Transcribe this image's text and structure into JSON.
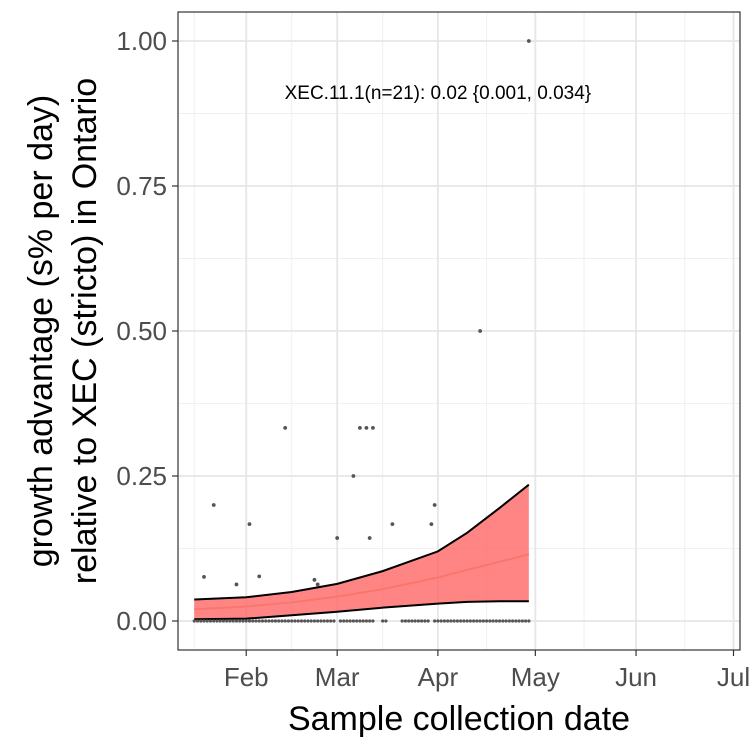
{
  "chart_data": {
    "type": "scatter",
    "title": "",
    "xlabel": "Sample collection date",
    "ylabel": "growth advantage (s% per day)\nrelative to XEC (stricto) in Ontario",
    "ylabel_lines": [
      "growth advantage (s% per day)",
      "relative to XEC (stricto) in Ontario"
    ],
    "x_range": [
      "2025-01-11",
      "2025-07-03"
    ],
    "ylim": [
      -0.05,
      1.05
    ],
    "grid": true,
    "x_ticks": [
      {
        "date": "2025-02-01",
        "label": "Feb"
      },
      {
        "date": "2025-03-01",
        "label": "Mar"
      },
      {
        "date": "2025-04-01",
        "label": "Apr"
      },
      {
        "date": "2025-05-01",
        "label": "May"
      },
      {
        "date": "2025-06-01",
        "label": "Jun"
      },
      {
        "date": "2025-07-01",
        "label": "Jul"
      }
    ],
    "x_minor_ticks": [
      "2025-01-16",
      "2025-02-15",
      "2025-03-15",
      "2025-04-16",
      "2025-05-16",
      "2025-06-16"
    ],
    "y_ticks": [
      {
        "value": 0,
        "label": "0.00"
      },
      {
        "value": 0.25,
        "label": "0.25"
      },
      {
        "value": 0.5,
        "label": "0.50"
      },
      {
        "value": 0.75,
        "label": "0.75"
      },
      {
        "value": 1,
        "label": "1.00"
      }
    ],
    "y_minor_ticks": [
      0.125,
      0.375,
      0.625,
      0.875
    ],
    "annotation": {
      "text": "XEC.11.1(n=21): 0.02 {0.001, 0.034}",
      "date": "2025-04-01",
      "y": 0.91
    },
    "fit": {
      "name": "XEC.11.1",
      "color": "#F8766D",
      "line_color": "#F8766D",
      "band_color": "#FF6666",
      "x": [
        "2025-01-16",
        "2025-02-01",
        "2025-02-15",
        "2025-03-01",
        "2025-03-15",
        "2025-04-01",
        "2025-04-10",
        "2025-04-20",
        "2025-04-29"
      ],
      "y": [
        0.02,
        0.025,
        0.032,
        0.042,
        0.055,
        0.075,
        0.088,
        0.102,
        0.115
      ],
      "lower": [
        0.003,
        0.004,
        0.01,
        0.016,
        0.023,
        0.03,
        0.033,
        0.034,
        0.034
      ],
      "upper": [
        0.037,
        0.041,
        0.05,
        0.064,
        0.086,
        0.12,
        0.152,
        0.195,
        0.235
      ]
    },
    "points": [
      {
        "x": "2025-01-19",
        "y": 0.076
      },
      {
        "x": "2025-01-22",
        "y": 0.2
      },
      {
        "x": "2025-01-29",
        "y": 0.063
      },
      {
        "x": "2025-02-02",
        "y": 0.167
      },
      {
        "x": "2025-02-05",
        "y": 0.077
      },
      {
        "x": "2025-02-13",
        "y": 0.333
      },
      {
        "x": "2025-02-22",
        "y": 0.071
      },
      {
        "x": "2025-02-23",
        "y": 0.063
      },
      {
        "x": "2025-03-01",
        "y": 0.143
      },
      {
        "x": "2025-03-06",
        "y": 0.25
      },
      {
        "x": "2025-03-08",
        "y": 0.333
      },
      {
        "x": "2025-03-10",
        "y": 0.333
      },
      {
        "x": "2025-03-12",
        "y": 0.333
      },
      {
        "x": "2025-03-11",
        "y": 0.143
      },
      {
        "x": "2025-03-18",
        "y": 0.167
      },
      {
        "x": "2025-03-30",
        "y": 0.167
      },
      {
        "x": "2025-03-31",
        "y": 0.2
      },
      {
        "x": "2025-04-14",
        "y": 0.5
      },
      {
        "x": "2025-04-29",
        "y": 1.0
      }
    ],
    "zero_point_ranges": [
      [
        "2025-01-16",
        "2025-02-28"
      ],
      [
        "2025-03-02",
        "2025-03-12"
      ],
      [
        "2025-03-15",
        "2025-03-16"
      ],
      [
        "2025-03-21",
        "2025-03-29"
      ],
      [
        "2025-03-31",
        "2025-04-29"
      ]
    ],
    "point_color": "#555555"
  }
}
